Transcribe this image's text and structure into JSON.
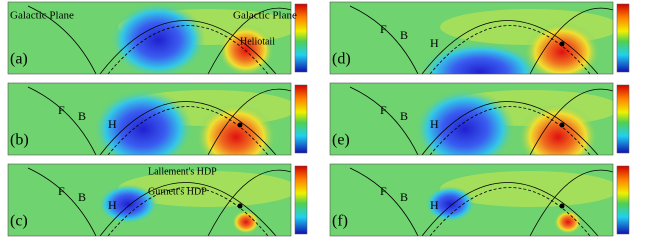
{
  "panels": [
    {
      "label": "(a)",
      "annotations": [
        "Galactic Plane",
        "Galactic Plane",
        "Heliotail"
      ]
    },
    {
      "label": "(b)",
      "annotations": [
        "F",
        "B",
        "H"
      ]
    },
    {
      "label": "(c)",
      "annotations": [
        "F",
        "B",
        "H",
        "Lallement's HDP",
        "Gurnett's HDP"
      ]
    },
    {
      "label": "(d)",
      "annotations": [
        "F",
        "B",
        "H"
      ]
    },
    {
      "label": "(e)",
      "annotations": [
        "F",
        "B",
        "H"
      ]
    },
    {
      "label": "(f)",
      "annotations": [
        "F",
        "B",
        "H"
      ]
    }
  ]
}
